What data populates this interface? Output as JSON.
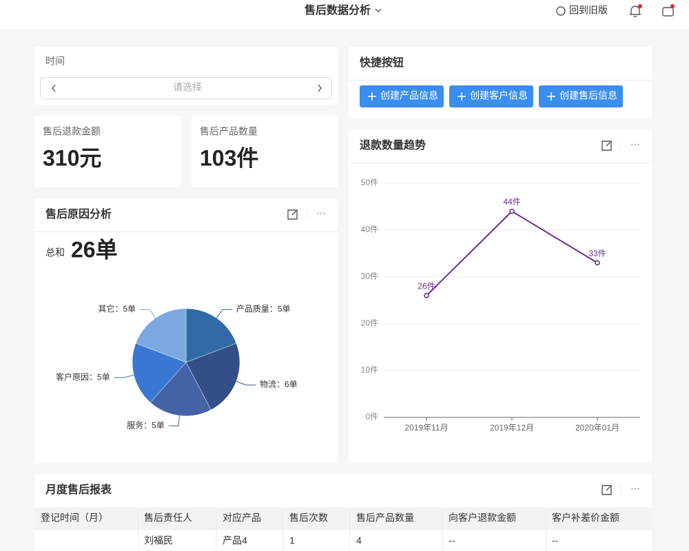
{
  "header": {
    "title": "售后数据分析",
    "back_link": "回到旧版"
  },
  "time_filter": {
    "label": "时间",
    "placeholder": "请选择"
  },
  "quick_actions": {
    "title": "快捷按钮",
    "buttons": [
      "创建产品信息",
      "创建客户信息",
      "创建售后信息"
    ]
  },
  "kpis": [
    {
      "label": "售后退款金额",
      "value": "310元"
    },
    {
      "label": "售后产品数量",
      "value": "103件"
    }
  ],
  "chart_data": [
    {
      "type": "pie",
      "title": "售后原因分析",
      "total_label": "总和",
      "total": "26单",
      "values": [
        5,
        6,
        5,
        5,
        5
      ],
      "value_labels": [
        "产品质量：5单",
        "物流：6单",
        "服务：5单",
        "客户原因：5单",
        "其它：5单"
      ],
      "colors": [
        "#2f6aa6",
        "#344f87",
        "#4463a6",
        "#3878d3",
        "#7ba8e1"
      ]
    },
    {
      "type": "line",
      "title": "退款数量趋势",
      "categories": [
        "2019年11月",
        "2019年12月",
        "2020年01月"
      ],
      "series": [
        {
          "name": null,
          "color": "#6a2c91",
          "values": [
            26,
            44,
            33
          ],
          "value_labels": [
            "26件",
            "44件",
            "33件"
          ]
        }
      ],
      "ylim": [
        0,
        50
      ],
      "yticks": [
        {
          "value": 0,
          "label": "0件"
        },
        {
          "value": 10,
          "label": "10件"
        },
        {
          "value": 20,
          "label": "20件"
        },
        {
          "value": 30,
          "label": "30件"
        },
        {
          "value": 40,
          "label": "40件"
        },
        {
          "value": 50,
          "label": "50件"
        }
      ],
      "grid": true
    }
  ],
  "table": {
    "title": "月度售后报表",
    "columns": [
      "登记时间（月）",
      "售后责任人",
      "对应产品",
      "售后次数",
      "售后产品数量",
      "向客户退款金额",
      "客户补差价金额"
    ],
    "rows": [
      [
        null,
        "刘福民",
        "产品4",
        1,
        4,
        "--",
        "--"
      ]
    ]
  }
}
